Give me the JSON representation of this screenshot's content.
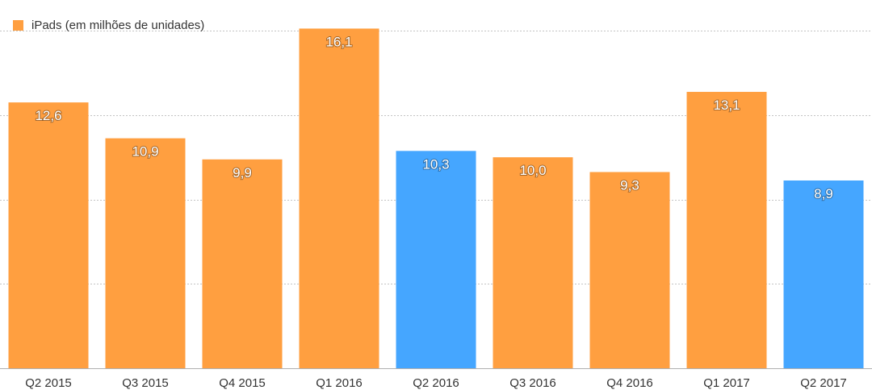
{
  "chart_data": {
    "type": "bar",
    "categories": [
      "Q2 2015",
      "Q3 2015",
      "Q4 2015",
      "Q1 2016",
      "Q2 2016",
      "Q3 2016",
      "Q4 2016",
      "Q1 2017",
      "Q2 2017"
    ],
    "series": [
      {
        "name": "iPads (em milhões de unidades)",
        "values": [
          12.6,
          10.9,
          9.9,
          16.1,
          10.3,
          10.0,
          9.3,
          13.1,
          8.9
        ],
        "value_labels": [
          "12,6",
          "10,9",
          "9,9",
          "16,1",
          "10,3",
          "10,0",
          "9,3",
          "13,1",
          "8,9"
        ]
      }
    ],
    "highlighted_categories": [
      "Q2 2016",
      "Q2 2017"
    ],
    "colors": {
      "default": "#ff9f40",
      "highlight": "#45a6ff"
    },
    "ylim": [
      0,
      16.5
    ],
    "gridlines": [
      4,
      8,
      12,
      16
    ],
    "grid": true,
    "legend_position": "top-left",
    "title": "",
    "xlabel": "",
    "ylabel": ""
  },
  "legend": {
    "label": "iPads (em milhões de unidades)",
    "color": "#ff9f40"
  }
}
